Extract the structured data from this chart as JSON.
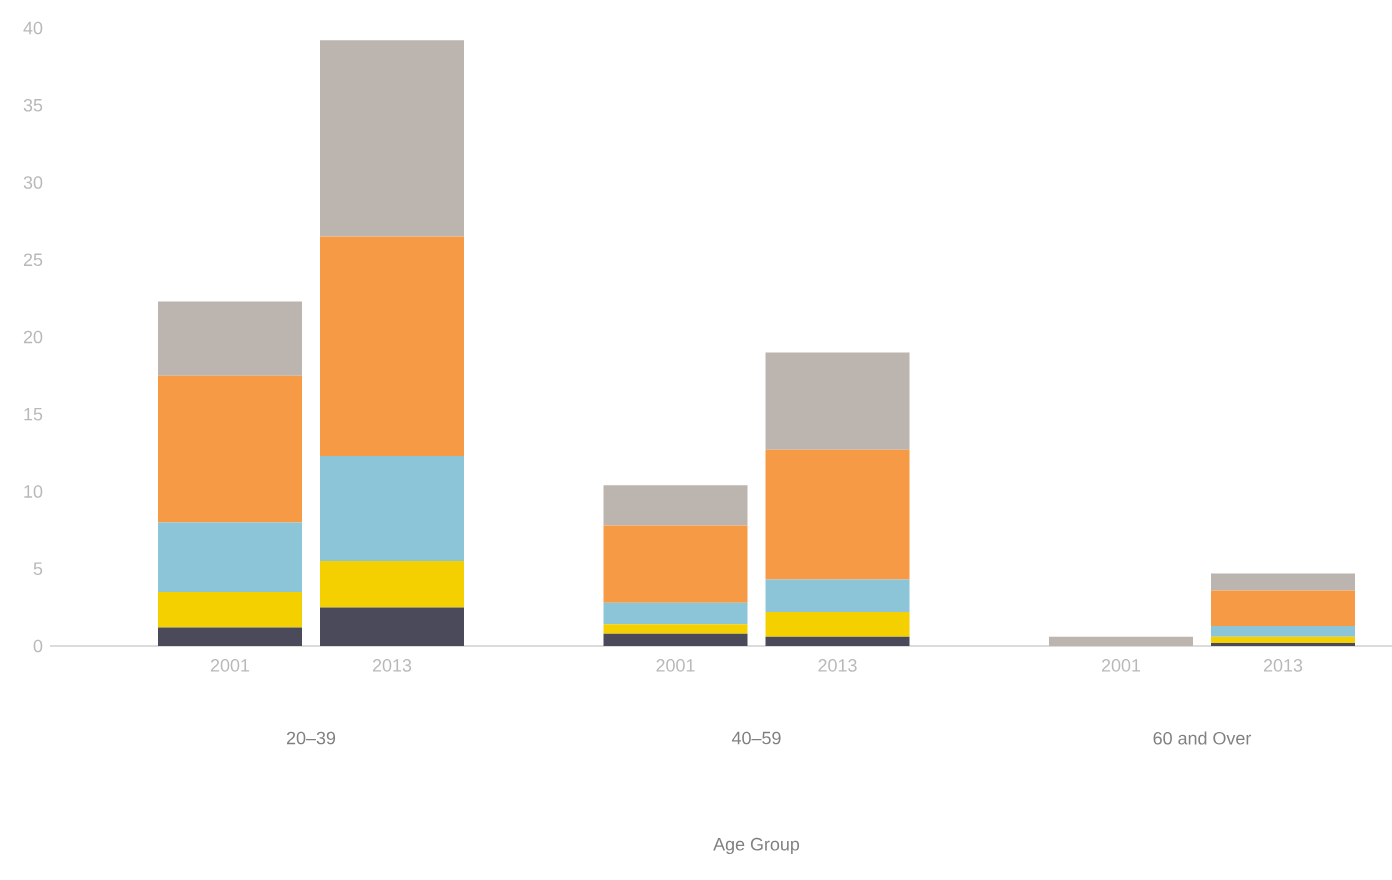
{
  "chart_data": {
    "type": "bar",
    "stacked": true,
    "categories": [
      "2001",
      "2013",
      "2001",
      "2013",
      "2001",
      "2013"
    ],
    "annotations": [
      "20–39",
      "40–59",
      "60 and Over",
      "Age Group"
    ],
    "series": [
      {
        "color": "#4a4a5a",
        "values": [
          1.2,
          2.5,
          0.8,
          0.6,
          0,
          0.2
        ]
      },
      {
        "color": "#f5d000",
        "values": [
          2.3,
          3.0,
          0.6,
          1.6,
          0,
          0.4
        ]
      },
      {
        "color": "#8cc4d8",
        "values": [
          4.5,
          6.8,
          1.4,
          2.1,
          0,
          0.7
        ]
      },
      {
        "color": "#f79a45",
        "values": [
          9.5,
          14.2,
          5.0,
          8.4,
          0,
          2.3
        ]
      },
      {
        "color": "#bcb4ae",
        "values": [
          4.8,
          12.7,
          2.6,
          6.3,
          0.6,
          1.1
        ]
      }
    ],
    "ylim": [
      0,
      40
    ],
    "yticks": [
      0,
      5,
      10,
      15,
      20,
      25,
      30,
      35,
      40
    ]
  }
}
